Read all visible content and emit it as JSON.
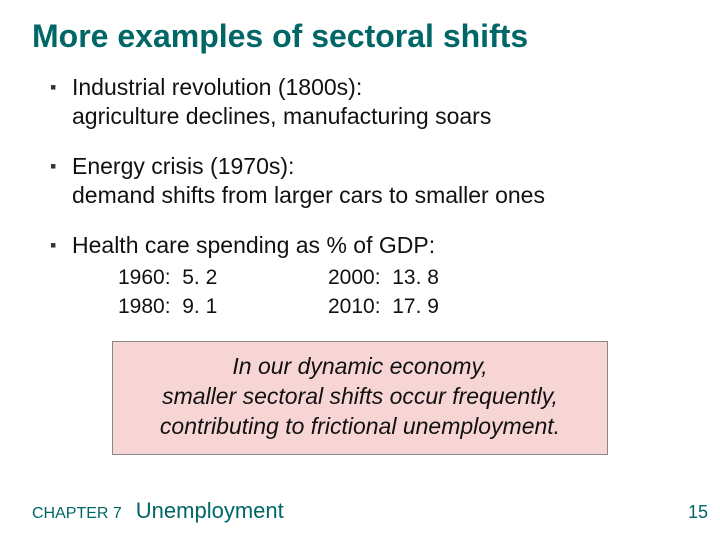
{
  "title": "More examples of sectoral shifts",
  "bullets": {
    "mark": "▪",
    "items": [
      {
        "lead": "Industrial revolution (1800s):",
        "rest": "agriculture declines, manufacturing soars"
      },
      {
        "lead": "Energy crisis (1970s):",
        "rest": "demand shifts from larger cars to smaller ones"
      },
      {
        "lead": "Health care spending as % of GDP:",
        "data": {
          "rows": [
            {
              "left_year": "1960:",
              "left_val": "5. 2",
              "right_year": "2000:",
              "right_val": "13. 8"
            },
            {
              "left_year": "1980:",
              "left_val": "9. 1",
              "right_year": "2010:",
              "right_val": "17. 9"
            }
          ]
        }
      }
    ]
  },
  "callout": {
    "line1": "In our dynamic economy,",
    "line2": "smaller sectoral shifts occur frequently,",
    "line3": "contributing to frictional unemployment.",
    "background": "#f8d5d5",
    "border": "#888888"
  },
  "footer": {
    "chapter": "CHAPTER 7",
    "title": "Unemployment",
    "page": "15"
  },
  "colors": {
    "heading": "#006666",
    "text": "#111111",
    "background": "#ffffff"
  }
}
